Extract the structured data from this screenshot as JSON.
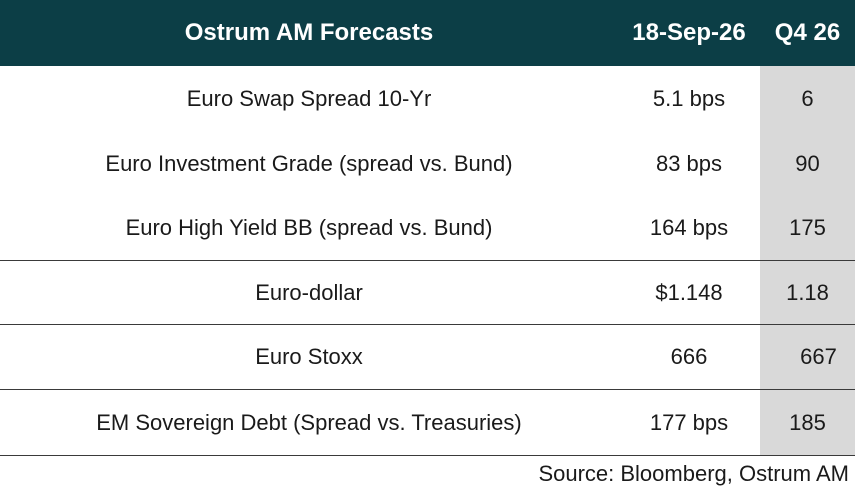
{
  "header": {
    "title": "Ostrum AM Forecasts",
    "date_col": "18-Sep-26",
    "forecast_col": "Q4 26"
  },
  "rows": [
    {
      "label": "Euro Swap Spread 10-Yr",
      "current": "5.1 bps",
      "forecast": "6"
    },
    {
      "label": "Euro Investment Grade (spread vs. Bund)",
      "current": "83 bps",
      "forecast": "90"
    },
    {
      "label": "Euro High Yield BB (spread vs. Bund)",
      "current": "164 bps",
      "forecast": "175"
    },
    {
      "label": "Euro-dollar",
      "current": "$1.148",
      "forecast": "1.18"
    },
    {
      "label": "Euro Stoxx",
      "current": "666",
      "forecast": "667"
    },
    {
      "label": "EM Sovereign Debt  (Spread vs. Treasuries)",
      "current": "177 bps",
      "forecast": "185"
    }
  ],
  "source": "Source: Bloomberg, Ostrum AM"
}
